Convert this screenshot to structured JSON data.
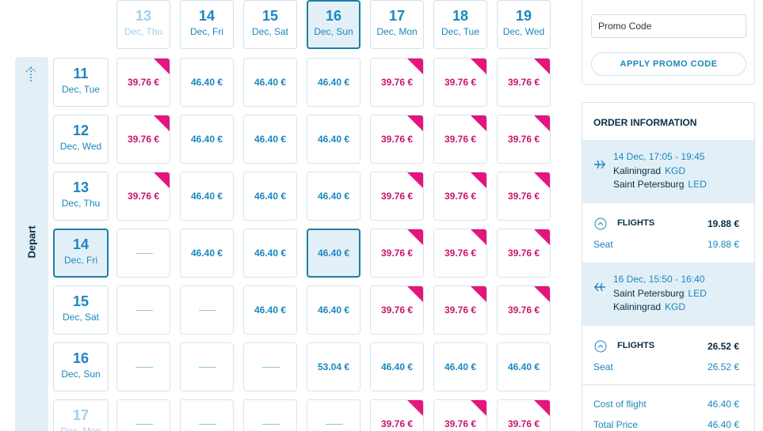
{
  "return_dates": [
    {
      "day": "13",
      "label": "Dec, Thu",
      "faded": true
    },
    {
      "day": "14",
      "label": "Dec, Fri"
    },
    {
      "day": "15",
      "label": "Dec, Sat"
    },
    {
      "day": "16",
      "label": "Dec, Sun",
      "selected": true
    },
    {
      "day": "17",
      "label": "Dec, Mon"
    },
    {
      "day": "18",
      "label": "Dec, Tue"
    },
    {
      "day": "19",
      "label": "Dec, Wed"
    }
  ],
  "depart_label": "Depart",
  "depart_dates": [
    {
      "day": "11",
      "label": "Dec, Tue",
      "cells": [
        {
          "price": "39.76 €",
          "promo": true
        },
        {
          "price": "46.40 €"
        },
        {
          "price": "46.40 €"
        },
        {
          "price": "46.40 €"
        },
        {
          "price": "39.76 €",
          "promo": true
        },
        {
          "price": "39.76 €",
          "promo": true
        },
        {
          "price": "39.76 €",
          "promo": true
        }
      ]
    },
    {
      "day": "12",
      "label": "Dec, Wed",
      "cells": [
        {
          "price": "39.76 €",
          "promo": true
        },
        {
          "price": "46.40 €"
        },
        {
          "price": "46.40 €"
        },
        {
          "price": "46.40 €"
        },
        {
          "price": "39.76 €",
          "promo": true
        },
        {
          "price": "39.76 €",
          "promo": true
        },
        {
          "price": "39.76 €",
          "promo": true
        }
      ]
    },
    {
      "day": "13",
      "label": "Dec, Thu",
      "cells": [
        {
          "price": "39.76 €",
          "promo": true
        },
        {
          "price": "46.40 €"
        },
        {
          "price": "46.40 €"
        },
        {
          "price": "46.40 €"
        },
        {
          "price": "39.76 €",
          "promo": true
        },
        {
          "price": "39.76 €",
          "promo": true
        },
        {
          "price": "39.76 €",
          "promo": true
        }
      ]
    },
    {
      "day": "14",
      "label": "Dec, Fri",
      "selected": true,
      "cells": [
        null,
        {
          "price": "46.40 €"
        },
        {
          "price": "46.40 €"
        },
        {
          "price": "46.40 €",
          "selected": true
        },
        {
          "price": "39.76 €",
          "promo": true
        },
        {
          "price": "39.76 €",
          "promo": true
        },
        {
          "price": "39.76 €",
          "promo": true
        }
      ]
    },
    {
      "day": "15",
      "label": "Dec, Sat",
      "cells": [
        null,
        null,
        {
          "price": "46.40 €"
        },
        {
          "price": "46.40 €"
        },
        {
          "price": "39.76 €",
          "promo": true
        },
        {
          "price": "39.76 €",
          "promo": true
        },
        {
          "price": "39.76 €",
          "promo": true
        }
      ]
    },
    {
      "day": "16",
      "label": "Dec, Sun",
      "cells": [
        null,
        null,
        null,
        {
          "price": "53.04 €"
        },
        {
          "price": "46.40 €"
        },
        {
          "price": "46.40 €"
        },
        {
          "price": "46.40 €"
        }
      ]
    },
    {
      "day": "17",
      "label": "Dec, Mon",
      "faded": true,
      "cells": [
        null,
        null,
        null,
        null,
        {
          "price": "39.76 €",
          "promo": true
        },
        {
          "price": "39.76 €",
          "promo": true
        },
        {
          "price": "39.76 €",
          "promo": true
        }
      ]
    }
  ],
  "promo": {
    "placeholder": "Promo Code",
    "button": "APPLY PROMO CODE"
  },
  "order": {
    "title": "ORDER INFORMATION",
    "legs": [
      {
        "time": "14 Dec, 17:05 - 19:45",
        "from": "Kaliningrad",
        "from_code": "KGD",
        "to": "Saint Petersburg",
        "to_code": "LED",
        "flights_label": "FLIGHTS",
        "flights_price": "19.88 €",
        "seat_label": "Seat",
        "seat_price": "19.88 €"
      },
      {
        "time": "16 Dec, 15:50 - 16:40",
        "from": "Saint Petersburg",
        "from_code": "LED",
        "to": "Kaliningrad",
        "to_code": "KGD",
        "flights_label": "FLIGHTS",
        "flights_price": "26.52 €",
        "seat_label": "Seat",
        "seat_price": "26.52 €"
      }
    ],
    "cost_label": "Cost of flight",
    "cost": "46.40 €",
    "total_label": "Total Price",
    "total": "46.40 €"
  }
}
